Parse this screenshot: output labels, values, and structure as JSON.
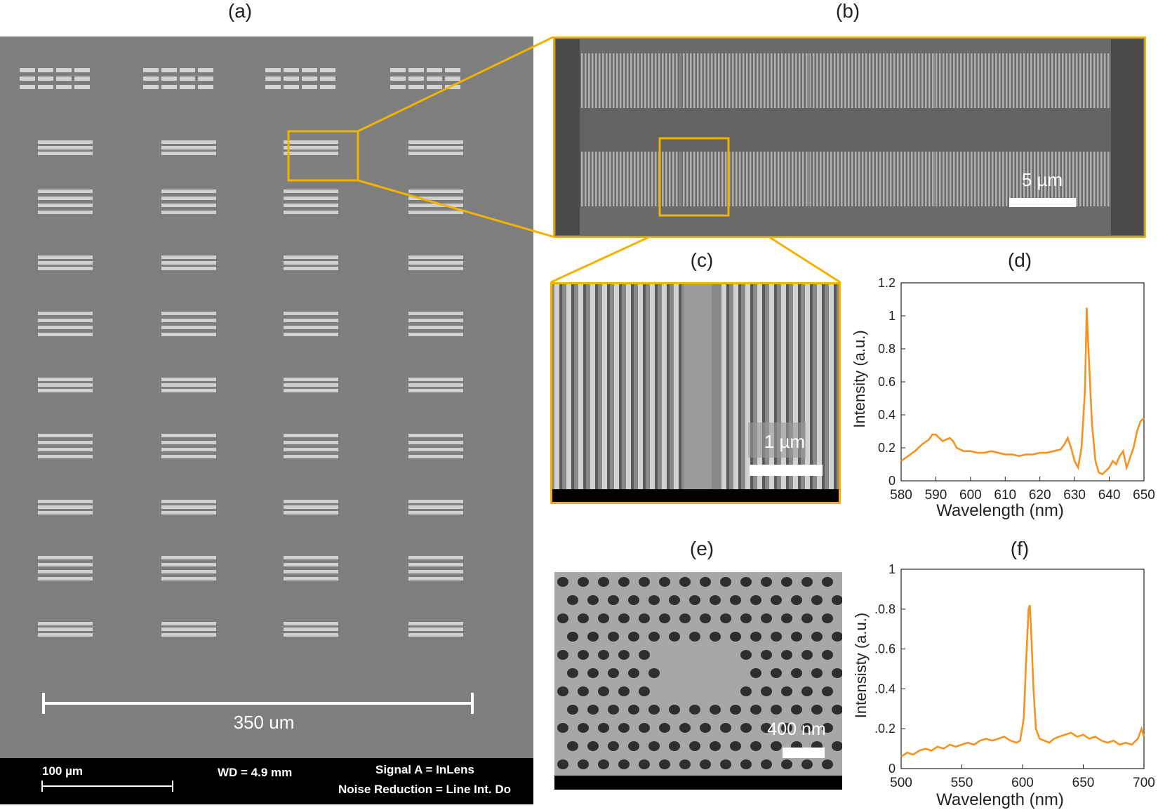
{
  "panels": {
    "a": {
      "label": "(a)",
      "scale_label": "350 um",
      "info": {
        "scalebar": "100 µm",
        "wd": "WD =  4.9 mm",
        "signal": "Signal A = InLens",
        "noise": "Noise Reduction = Line Int. Do"
      }
    },
    "b": {
      "label": "(b)",
      "scale_label": "5 µm"
    },
    "c": {
      "label": "(c)",
      "scale_label": "1 µm"
    },
    "d": {
      "label": "(d)"
    },
    "e": {
      "label": "(e)",
      "scale_label": "400 nm"
    },
    "f": {
      "label": "(f)"
    }
  },
  "colors": {
    "highlight": "#f2b200",
    "spectrum": "#f7921e",
    "sem_gray": "#7c7c7c"
  },
  "chart_data": [
    {
      "id": "d",
      "type": "line",
      "title": "(d)",
      "xlabel": "Wavelength (nm)",
      "ylabel": "Intensity (a.u.)",
      "xlim": [
        580,
        650
      ],
      "ylim": [
        0,
        1.2
      ],
      "xticks": [
        580,
        590,
        600,
        610,
        620,
        630,
        640,
        650
      ],
      "yticks": [
        0,
        0.2,
        0.4,
        0.6,
        0.8,
        1,
        1.2
      ],
      "ytick_labels": [
        "0",
        "0.2",
        "0.4",
        "0.6",
        "0.8",
        "1",
        "1.2"
      ],
      "series": [
        {
          "x": [
            580,
            582,
            584,
            586,
            588,
            589,
            590,
            591,
            592,
            594,
            595,
            596,
            598,
            600,
            602,
            604,
            606,
            608,
            610,
            612,
            614,
            616,
            618,
            620,
            622,
            624,
            626,
            627,
            628,
            629,
            630,
            631,
            632,
            633,
            633.5,
            634,
            635,
            636,
            637,
            638,
            639,
            640,
            641,
            642,
            643,
            644,
            645,
            646,
            647,
            648,
            649,
            650
          ],
          "y": [
            0.12,
            0.15,
            0.18,
            0.22,
            0.25,
            0.28,
            0.28,
            0.26,
            0.24,
            0.26,
            0.24,
            0.2,
            0.18,
            0.18,
            0.17,
            0.17,
            0.18,
            0.17,
            0.16,
            0.16,
            0.15,
            0.16,
            0.16,
            0.17,
            0.17,
            0.18,
            0.19,
            0.22,
            0.26,
            0.2,
            0.12,
            0.08,
            0.2,
            0.55,
            1.05,
            0.8,
            0.35,
            0.12,
            0.05,
            0.04,
            0.06,
            0.08,
            0.12,
            0.1,
            0.15,
            0.18,
            0.08,
            0.14,
            0.2,
            0.3,
            0.36,
            0.38
          ]
        }
      ]
    },
    {
      "id": "f",
      "type": "line",
      "title": "(f)",
      "xlabel": "Wavelength (nm)",
      "ylabel": "Intensisty (a.u.)",
      "xlim": [
        500,
        700
      ],
      "ylim": [
        0,
        1
      ],
      "xticks": [
        500,
        550,
        600,
        650,
        700
      ],
      "yticks": [
        0,
        0.2,
        0.4,
        0.6,
        0.8,
        1
      ],
      "ytick_labels": [
        "0",
        ".0.2",
        ".0.4",
        ".0.6",
        ".0.8",
        "1"
      ],
      "series": [
        {
          "x": [
            500,
            505,
            510,
            515,
            520,
            525,
            530,
            535,
            540,
            545,
            550,
            555,
            560,
            565,
            570,
            575,
            580,
            585,
            590,
            595,
            598,
            601,
            603,
            605,
            606,
            607,
            609,
            611,
            614,
            618,
            622,
            626,
            630,
            635,
            640,
            645,
            650,
            655,
            660,
            665,
            670,
            675,
            680,
            685,
            690,
            695,
            698,
            700
          ],
          "y": [
            0.06,
            0.08,
            0.07,
            0.09,
            0.1,
            0.09,
            0.11,
            0.1,
            0.12,
            0.11,
            0.12,
            0.13,
            0.12,
            0.14,
            0.15,
            0.14,
            0.15,
            0.16,
            0.14,
            0.13,
            0.14,
            0.25,
            0.55,
            0.8,
            0.82,
            0.7,
            0.4,
            0.2,
            0.15,
            0.14,
            0.13,
            0.15,
            0.16,
            0.17,
            0.18,
            0.16,
            0.17,
            0.15,
            0.16,
            0.14,
            0.13,
            0.14,
            0.12,
            0.13,
            0.12,
            0.15,
            0.2,
            0.16
          ]
        }
      ]
    }
  ]
}
